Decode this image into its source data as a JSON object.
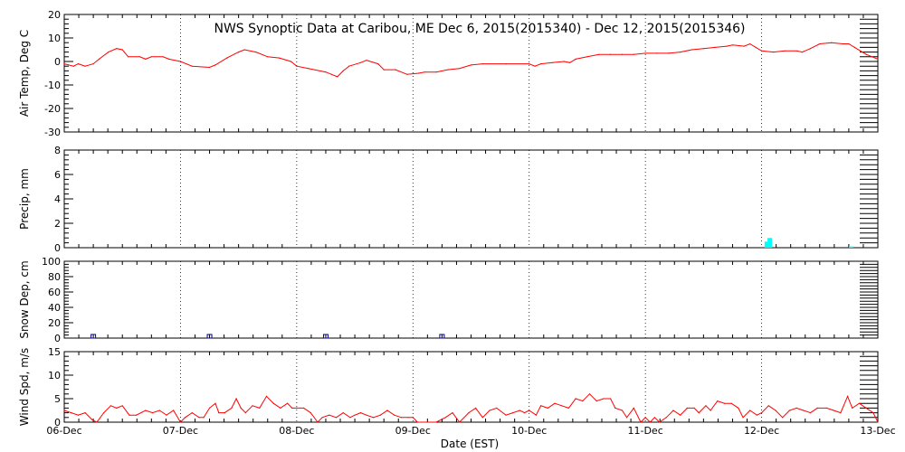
{
  "chart_data": {
    "type": "line",
    "title": "NWS Synoptic Data at Caribou, ME   Dec  6, 2015(2015340) - Dec 12, 2015(2015346)",
    "xlabel": "Date (EST)",
    "x_tick_labels": [
      "06-Dec",
      "07-Dec",
      "08-Dec",
      "09-Dec",
      "10-Dec",
      "11-Dec",
      "12-Dec",
      "13-Dec"
    ],
    "x_range_days": [
      0,
      7
    ],
    "grid": "dotted vertical at day boundaries",
    "colors": {
      "temp": "#ff0000",
      "wind": "#ff0000",
      "precip": "#00ffff",
      "snow": "#000080",
      "axis": "#000000"
    },
    "panels": [
      {
        "id": "temp",
        "type": "line",
        "ylabel": "Air Temp, Deg C",
        "ylim": [
          -30,
          20
        ],
        "yticks": [
          20,
          10,
          0,
          -10,
          -20,
          -30
        ],
        "series": [
          {
            "color": "#ff0000",
            "points": [
              [
                0.0,
                -1
              ],
              [
                0.08,
                -2
              ],
              [
                0.12,
                -1
              ],
              [
                0.18,
                -2
              ],
              [
                0.25,
                -1
              ],
              [
                0.3,
                1
              ],
              [
                0.38,
                4
              ],
              [
                0.45,
                5.5
              ],
              [
                0.5,
                5
              ],
              [
                0.55,
                2
              ],
              [
                0.65,
                2
              ],
              [
                0.7,
                1
              ],
              [
                0.75,
                2
              ],
              [
                0.85,
                2
              ],
              [
                0.9,
                1
              ],
              [
                1.0,
                0
              ],
              [
                1.1,
                -2
              ],
              [
                1.25,
                -2.5
              ],
              [
                1.3,
                -1.5
              ],
              [
                1.4,
                1.5
              ],
              [
                1.5,
                4
              ],
              [
                1.55,
                5
              ],
              [
                1.65,
                4
              ],
              [
                1.75,
                2
              ],
              [
                1.85,
                1.5
              ],
              [
                1.95,
                0
              ],
              [
                2.0,
                -2
              ],
              [
                2.1,
                -3
              ],
              [
                2.25,
                -4.5
              ],
              [
                2.3,
                -5.5
              ],
              [
                2.35,
                -6.5
              ],
              [
                2.4,
                -4
              ],
              [
                2.45,
                -2
              ],
              [
                2.55,
                -0.5
              ],
              [
                2.6,
                0.5
              ],
              [
                2.7,
                -1
              ],
              [
                2.75,
                -3.5
              ],
              [
                2.85,
                -3.5
              ],
              [
                2.95,
                -5.5
              ],
              [
                3.05,
                -5
              ],
              [
                3.1,
                -4.5
              ],
              [
                3.2,
                -4.5
              ],
              [
                3.3,
                -3.5
              ],
              [
                3.4,
                -3
              ],
              [
                3.5,
                -1.5
              ],
              [
                3.6,
                -1
              ],
              [
                3.8,
                -1
              ],
              [
                4.0,
                -1
              ],
              [
                4.05,
                -2
              ],
              [
                4.1,
                -1
              ],
              [
                4.2,
                -0.5
              ],
              [
                4.3,
                0
              ],
              [
                4.35,
                -0.5
              ],
              [
                4.4,
                1
              ],
              [
                4.5,
                2
              ],
              [
                4.6,
                3
              ],
              [
                4.7,
                3
              ],
              [
                4.8,
                3
              ],
              [
                4.9,
                3
              ],
              [
                5.0,
                3.5
              ],
              [
                5.1,
                3.5
              ],
              [
                5.2,
                3.5
              ],
              [
                5.3,
                4
              ],
              [
                5.4,
                5
              ],
              [
                5.5,
                5.5
              ],
              [
                5.6,
                6
              ],
              [
                5.7,
                6.5
              ],
              [
                5.75,
                7
              ],
              [
                5.85,
                6.5
              ],
              [
                5.9,
                7.5
              ],
              [
                5.95,
                6
              ],
              [
                6.0,
                4.5
              ],
              [
                6.1,
                4
              ],
              [
                6.2,
                4.5
              ],
              [
                6.3,
                4.5
              ],
              [
                6.35,
                4
              ],
              [
                6.42,
                5.5
              ],
              [
                6.5,
                7.5
              ],
              [
                6.6,
                8
              ],
              [
                6.7,
                7.5
              ],
              [
                6.75,
                7.5
              ],
              [
                6.8,
                6
              ],
              [
                6.85,
                4.5
              ],
              [
                6.9,
                3
              ],
              [
                6.95,
                2
              ],
              [
                7.0,
                1
              ]
            ]
          }
        ]
      },
      {
        "id": "precip",
        "type": "bar",
        "ylabel": "Precip, mm",
        "ylim": [
          0,
          8
        ],
        "yticks": [
          8,
          6,
          4,
          2,
          0
        ],
        "series": [
          {
            "color": "#00ffff",
            "bars": [
              {
                "x": 6.045,
                "value": 0.5
              },
              {
                "x": 6.07,
                "value": 0.8
              },
              {
                "x": 6.77,
                "value": 0.1
              }
            ]
          }
        ]
      },
      {
        "id": "snow",
        "type": "scatter",
        "ylabel": "Snow Dep, cm",
        "ylim": [
          0,
          100
        ],
        "yticks": [
          100,
          80,
          60,
          40,
          20,
          0
        ],
        "series": [
          {
            "color": "#000080",
            "marker": "square",
            "points": [
              [
                0.25,
                0
              ],
              [
                1.25,
                0
              ],
              [
                2.25,
                0
              ],
              [
                3.25,
                0
              ]
            ]
          }
        ]
      },
      {
        "id": "wind",
        "type": "line",
        "ylabel": "Wind Spd, m/s",
        "ylim": [
          0,
          15
        ],
        "yticks": [
          15,
          10,
          5,
          0
        ],
        "series": [
          {
            "color": "#ff0000",
            "points": [
              [
                0.0,
                2.5
              ],
              [
                0.06,
                2
              ],
              [
                0.12,
                1.5
              ],
              [
                0.18,
                2
              ],
              [
                0.24,
                0.5
              ],
              [
                0.28,
                0
              ],
              [
                0.34,
                2
              ],
              [
                0.4,
                3.5
              ],
              [
                0.45,
                3
              ],
              [
                0.5,
                3.5
              ],
              [
                0.56,
                1.5
              ],
              [
                0.62,
                1.5
              ],
              [
                0.7,
                2.5
              ],
              [
                0.76,
                2
              ],
              [
                0.82,
                2.5
              ],
              [
                0.88,
                1.5
              ],
              [
                0.94,
                2.5
              ],
              [
                1.0,
                0
              ],
              [
                1.04,
                1
              ],
              [
                1.1,
                2
              ],
              [
                1.16,
                1
              ],
              [
                1.2,
                1
              ],
              [
                1.25,
                3
              ],
              [
                1.3,
                4
              ],
              [
                1.33,
                2
              ],
              [
                1.38,
                2
              ],
              [
                1.44,
                3
              ],
              [
                1.48,
                5
              ],
              [
                1.52,
                3
              ],
              [
                1.56,
                2
              ],
              [
                1.62,
                3.5
              ],
              [
                1.68,
                3
              ],
              [
                1.74,
                5.5
              ],
              [
                1.8,
                4
              ],
              [
                1.86,
                3
              ],
              [
                1.92,
                4
              ],
              [
                1.96,
                3
              ],
              [
                2.0,
                3
              ],
              [
                2.06,
                3
              ],
              [
                2.12,
                2
              ],
              [
                2.18,
                0
              ],
              [
                2.22,
                1
              ],
              [
                2.28,
                1.5
              ],
              [
                2.34,
                1
              ],
              [
                2.4,
                2
              ],
              [
                2.46,
                1
              ],
              [
                2.5,
                1.5
              ],
              [
                2.55,
                2
              ],
              [
                2.6,
                1.5
              ],
              [
                2.66,
                1
              ],
              [
                2.72,
                1.5
              ],
              [
                2.78,
                2.5
              ],
              [
                2.84,
                1.5
              ],
              [
                2.9,
                1
              ],
              [
                2.96,
                1
              ],
              [
                3.0,
                1
              ],
              [
                3.04,
                0
              ],
              [
                3.2,
                0
              ],
              [
                3.28,
                1
              ],
              [
                3.34,
                2
              ],
              [
                3.4,
                0
              ],
              [
                3.48,
                2
              ],
              [
                3.54,
                3
              ],
              [
                3.6,
                1
              ],
              [
                3.66,
                2.5
              ],
              [
                3.72,
                3
              ],
              [
                3.8,
                1.5
              ],
              [
                3.86,
                2
              ],
              [
                3.92,
                2.5
              ],
              [
                3.96,
                2
              ],
              [
                4.0,
                2.5
              ],
              [
                4.06,
                1.5
              ],
              [
                4.1,
                3.5
              ],
              [
                4.16,
                3
              ],
              [
                4.22,
                4
              ],
              [
                4.28,
                3.5
              ],
              [
                4.34,
                3
              ],
              [
                4.4,
                5
              ],
              [
                4.46,
                4.5
              ],
              [
                4.52,
                6
              ],
              [
                4.58,
                4.5
              ],
              [
                4.64,
                5
              ],
              [
                4.7,
                5
              ],
              [
                4.74,
                3
              ],
              [
                4.8,
                2.5
              ],
              [
                4.84,
                1
              ],
              [
                4.9,
                3
              ],
              [
                4.96,
                0
              ],
              [
                5.0,
                1
              ],
              [
                5.04,
                0
              ],
              [
                5.08,
                1
              ],
              [
                5.12,
                0
              ],
              [
                5.18,
                1
              ],
              [
                5.24,
                2.5
              ],
              [
                5.3,
                1.5
              ],
              [
                5.36,
                3
              ],
              [
                5.42,
                3
              ],
              [
                5.46,
                2
              ],
              [
                5.52,
                3.5
              ],
              [
                5.56,
                2.5
              ],
              [
                5.62,
                4.5
              ],
              [
                5.68,
                4
              ],
              [
                5.74,
                4
              ],
              [
                5.8,
                3
              ],
              [
                5.84,
                1
              ],
              [
                5.9,
                2.5
              ],
              [
                5.96,
                1.5
              ],
              [
                6.0,
                2
              ],
              [
                6.06,
                3.5
              ],
              [
                6.12,
                2.5
              ],
              [
                6.18,
                1
              ],
              [
                6.24,
                2.5
              ],
              [
                6.3,
                3
              ],
              [
                6.36,
                2.5
              ],
              [
                6.42,
                2
              ],
              [
                6.48,
                3
              ],
              [
                6.56,
                3
              ],
              [
                6.62,
                2.5
              ],
              [
                6.68,
                2
              ],
              [
                6.74,
                5.5
              ],
              [
                6.78,
                3
              ],
              [
                6.84,
                4
              ],
              [
                6.9,
                3
              ],
              [
                6.96,
                2
              ],
              [
                7.0,
                0
              ]
            ]
          }
        ]
      }
    ]
  }
}
